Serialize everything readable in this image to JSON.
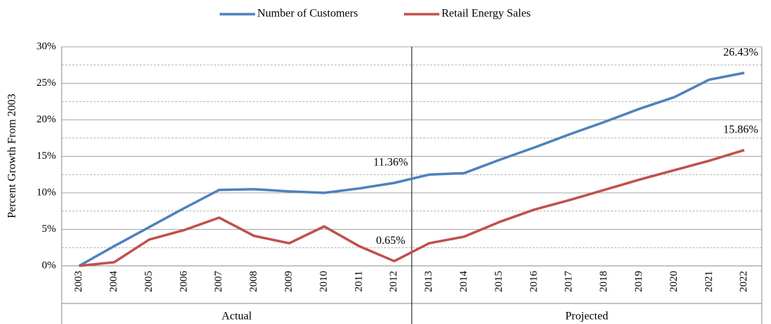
{
  "chart_data": {
    "type": "line",
    "y_label": "Percent Growth From 2003",
    "categories": [
      "2003",
      "2004",
      "2005",
      "2006",
      "2007",
      "2008",
      "2009",
      "2010",
      "2011",
      "2012",
      "2013",
      "2014",
      "2015",
      "2016",
      "2017",
      "2018",
      "2019",
      "2020",
      "2021",
      "2022"
    ],
    "groups": [
      "Actual",
      "Projected"
    ],
    "series": [
      {
        "name": "Number of Customers",
        "color": "#4f81bd",
        "values": [
          0,
          2.7,
          5.3,
          7.9,
          10.4,
          10.5,
          10.2,
          10.0,
          10.6,
          11.36,
          12.5,
          12.7,
          14.5,
          16.2,
          18.0,
          19.7,
          21.5,
          23.1,
          25.5,
          26.43
        ],
        "value_labels": [
          null,
          null,
          null,
          null,
          null,
          null,
          null,
          null,
          null,
          "11.36%",
          null,
          null,
          null,
          null,
          null,
          null,
          null,
          null,
          null,
          "26.43%"
        ]
      },
      {
        "name": "Retail Energy Sales",
        "color": "#c0504d",
        "values": [
          0,
          0.5,
          3.6,
          4.9,
          6.6,
          4.1,
          3.1,
          5.4,
          2.7,
          0.65,
          3.1,
          4.0,
          6.0,
          7.7,
          9.0,
          10.4,
          11.8,
          13.1,
          14.4,
          15.86
        ],
        "value_labels": [
          null,
          null,
          null,
          null,
          null,
          null,
          null,
          null,
          null,
          "0.65%",
          null,
          null,
          null,
          null,
          null,
          null,
          null,
          null,
          null,
          "15.86%"
        ]
      }
    ],
    "ylim": [
      0,
      30
    ],
    "yticks": [
      {
        "value": 0,
        "label": "0%"
      },
      {
        "value": 5,
        "label": "5%"
      },
      {
        "value": 10,
        "label": "10%"
      },
      {
        "value": 15,
        "label": "15%"
      },
      {
        "value": 20,
        "label": "20%"
      },
      {
        "value": 25,
        "label": "25%"
      },
      {
        "value": 30,
        "label": "30%"
      }
    ],
    "minor_yticks": [
      2.5,
      7.5,
      12.5,
      17.5,
      22.5,
      27.5
    ],
    "grid": true,
    "legend": "top"
  }
}
